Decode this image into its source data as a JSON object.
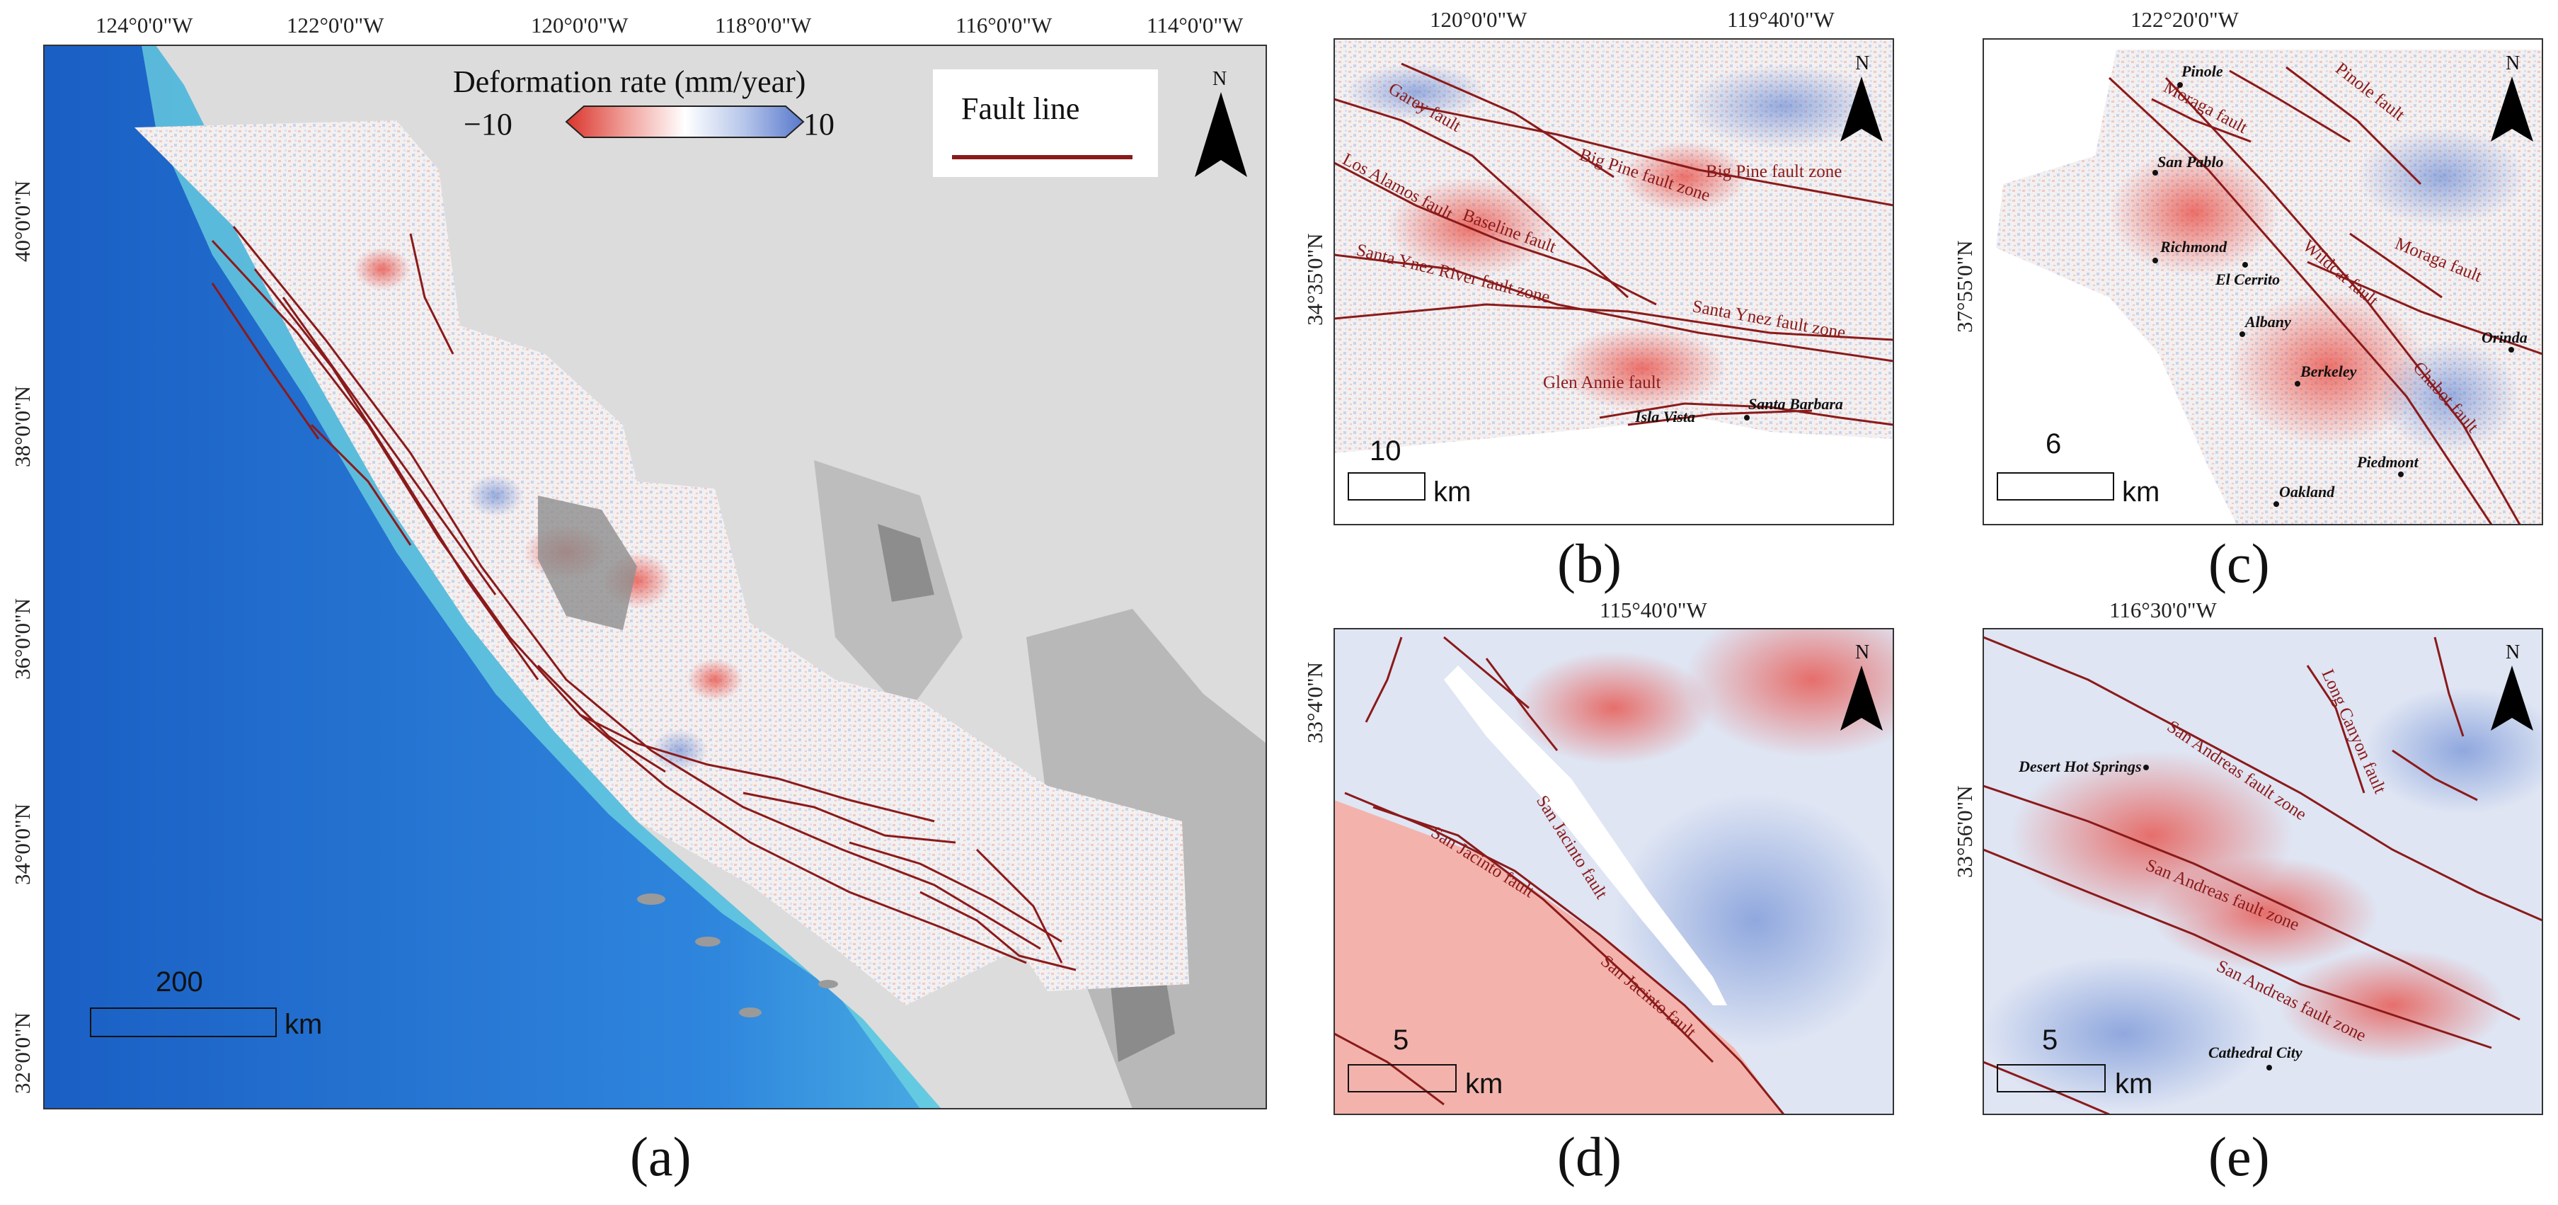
{
  "panels": {
    "a": {
      "label": "(a)",
      "lon_ticks": [
        "124°0'0\"W",
        "122°0'0\"W",
        "120°0'0\"W",
        "118°0'0\"W",
        "116°0'0\"W",
        "114°0'0\"W"
      ],
      "lat_ticks": [
        "40°0'0\"N",
        "38°0'0\"N",
        "36°0'0\"N",
        "34°0'0\"N",
        "32°0'0\"N"
      ],
      "scale_value": "200",
      "scale_unit": "km",
      "north": "N"
    },
    "b": {
      "label": "(b)",
      "lon_ticks": [
        "120°0'0\"W",
        "119°40'0\"W"
      ],
      "lat_ticks": [
        "34°35'0\"N"
      ],
      "scale_value": "10",
      "scale_unit": "km",
      "north": "N",
      "fault_labels": [
        "Garey fault",
        "Los Alamos fault",
        "Baseline fault",
        "Big Pine fault zone",
        "Big Pine fault zone",
        "Santa Ynez River fault zone",
        "Santa Ynez fault zone",
        "Glen Annie fault"
      ],
      "places": [
        "Santa Barbara",
        "Isla Vista"
      ]
    },
    "c": {
      "label": "(c)",
      "lon_ticks": [
        "122°20'0\"W"
      ],
      "lat_ticks": [
        "37°55'0\"N"
      ],
      "scale_value": "6",
      "scale_unit": "km",
      "north": "N",
      "fault_labels": [
        "Pinole fault",
        "Moraga fault",
        "Wildcat fault",
        "Moraga fault",
        "Chabot fault"
      ],
      "places": [
        "Pinole",
        "San Pablo",
        "Richmond",
        "El Cerrito",
        "Albany",
        "Berkeley",
        "Orinda",
        "Piedmont",
        "Oakland"
      ]
    },
    "d": {
      "label": "(d)",
      "lon_ticks": [
        "115°40'0\"W"
      ],
      "lat_ticks": [
        "33°4'0\"N"
      ],
      "scale_value": "5",
      "scale_unit": "km",
      "north": "N",
      "fault_labels": [
        "San Jacinto fault",
        "San Jacinto fault",
        "San Jacinto fault"
      ]
    },
    "e": {
      "label": "(e)",
      "lon_ticks": [
        "116°30'0\"W"
      ],
      "lat_ticks": [
        "33°56'0\"N"
      ],
      "scale_value": "5",
      "scale_unit": "km",
      "north": "N",
      "fault_labels": [
        "Long Canyon fault",
        "San Andreas fault zone",
        "San Andreas fault zone",
        "San Andreas fault zone"
      ],
      "places": [
        "Desert Hot Springs",
        "Cathedral City"
      ]
    }
  },
  "legend": {
    "colorbar_title": "Deformation rate (mm/year)",
    "colorbar_min": "−10",
    "colorbar_max": "10",
    "fault_legend": "Fault line"
  },
  "colors": {
    "fault": "#8b1a1a",
    "ocean_deep": "#1f6fd0",
    "ocean_shelf": "#6fd3e0",
    "terrain": "#d8d8d8",
    "uplift": "#e8473e",
    "subsidence": "#5b7fd0"
  },
  "icons": [
    "north-arrow-icon"
  ]
}
